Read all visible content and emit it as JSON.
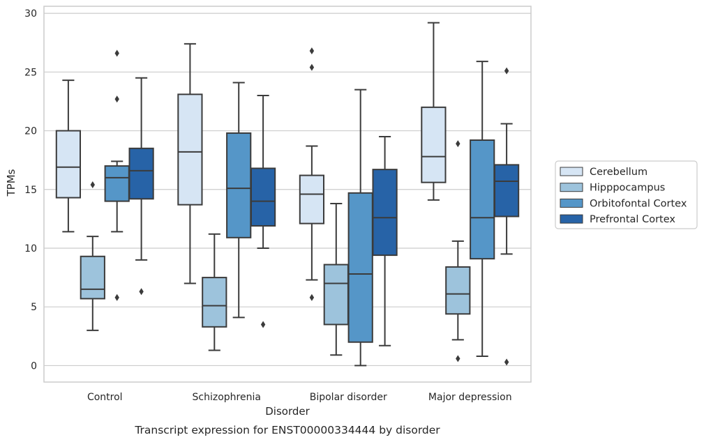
{
  "caption": "Transcript expression for ENST00000334444 by disorder",
  "chart_data": {
    "type": "box",
    "xlabel": "Disorder",
    "ylabel": "TPMs",
    "ylim": [
      -1.4,
      30.6
    ],
    "yticks": [
      0,
      5,
      10,
      15,
      20,
      25,
      30
    ],
    "grid": "horizontal",
    "legend_position": "right",
    "categories": [
      "Control",
      "Schizophrenia",
      "Bipolar disorder",
      "Major depression"
    ],
    "series": [
      {
        "name": "Cerebellum",
        "color": "#d6e5f4",
        "boxes": [
          {
            "whislo": 11.4,
            "q1": 14.3,
            "med": 16.9,
            "q3": 20.0,
            "whishi": 24.3,
            "fliers": []
          },
          {
            "whislo": 7.0,
            "q1": 13.7,
            "med": 18.2,
            "q3": 23.1,
            "whishi": 27.4,
            "fliers": []
          },
          {
            "whislo": 7.3,
            "q1": 12.1,
            "med": 14.6,
            "q3": 16.2,
            "whishi": 18.7,
            "fliers": [
              5.8,
              25.4,
              26.8
            ]
          },
          {
            "whislo": 14.1,
            "q1": 15.6,
            "med": 17.8,
            "q3": 22.0,
            "whishi": 29.2,
            "fliers": []
          }
        ]
      },
      {
        "name": "Hipppocampus",
        "color": "#9dc3dc",
        "boxes": [
          {
            "whislo": 3.0,
            "q1": 5.7,
            "med": 6.5,
            "q3": 9.3,
            "whishi": 11.0,
            "fliers": [
              15.4
            ]
          },
          {
            "whislo": 1.3,
            "q1": 3.3,
            "med": 5.1,
            "q3": 7.5,
            "whishi": 11.2,
            "fliers": []
          },
          {
            "whislo": 0.9,
            "q1": 3.5,
            "med": 7.0,
            "q3": 8.6,
            "whishi": 13.8,
            "fliers": []
          },
          {
            "whislo": 2.2,
            "q1": 4.4,
            "med": 6.1,
            "q3": 8.4,
            "whishi": 10.6,
            "fliers": [
              0.6,
              18.9
            ]
          }
        ]
      },
      {
        "name": "Orbitofontal Cortex",
        "color": "#5596c8",
        "boxes": [
          {
            "whislo": 11.4,
            "q1": 14.0,
            "med": 16.0,
            "q3": 17.0,
            "whishi": 17.4,
            "fliers": [
              5.8,
              22.7,
              26.6
            ]
          },
          {
            "whislo": 4.1,
            "q1": 10.9,
            "med": 15.1,
            "q3": 19.8,
            "whishi": 24.1,
            "fliers": []
          },
          {
            "whislo": 0.0,
            "q1": 2.0,
            "med": 7.8,
            "q3": 14.7,
            "whishi": 23.5,
            "fliers": []
          },
          {
            "whislo": 0.8,
            "q1": 9.1,
            "med": 12.6,
            "q3": 19.2,
            "whishi": 25.9,
            "fliers": []
          }
        ]
      },
      {
        "name": "Prefrontal Cortex",
        "color": "#2763a7",
        "boxes": [
          {
            "whislo": 9.0,
            "q1": 14.2,
            "med": 16.6,
            "q3": 18.5,
            "whishi": 24.5,
            "fliers": [
              6.3
            ]
          },
          {
            "whislo": 10.0,
            "q1": 11.9,
            "med": 14.0,
            "q3": 16.8,
            "whishi": 23.0,
            "fliers": [
              3.5
            ]
          },
          {
            "whislo": 1.7,
            "q1": 9.4,
            "med": 12.6,
            "q3": 16.7,
            "whishi": 19.5,
            "fliers": []
          },
          {
            "whislo": 9.5,
            "q1": 12.7,
            "med": 15.7,
            "q3": 17.1,
            "whishi": 20.6,
            "fliers": [
              0.3,
              25.1
            ]
          }
        ]
      }
    ]
  }
}
